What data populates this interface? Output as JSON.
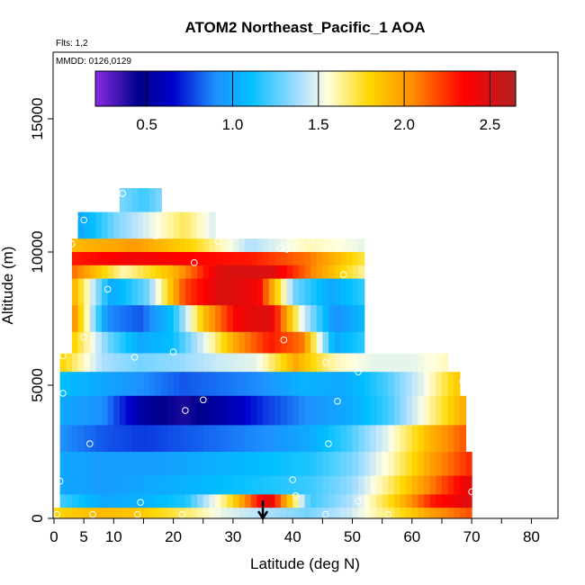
{
  "chart_data": {
    "type": "heatmap",
    "title": "ATOM2 Northeast_Pacific_1 AOA",
    "annotations": [
      "Flts: 1,2",
      "MMDD: 0126,0129"
    ],
    "xlabel": "Latitude (deg N)",
    "ylabel": "Altitude (m)",
    "xlim": [
      0,
      85
    ],
    "ylim": [
      0,
      17500
    ],
    "x_ticks": [
      0,
      5,
      10,
      20,
      30,
      40,
      50,
      60,
      70,
      80
    ],
    "y_ticks": [
      0,
      5000,
      10000,
      15000
    ],
    "colorbar": {
      "range": [
        0.2,
        2.65
      ],
      "ticks": [
        0.5,
        1.0,
        1.5,
        2.0,
        2.5
      ],
      "tick_labels": [
        "0.5",
        "1.0",
        "1.5",
        "2.0",
        "2.5"
      ],
      "colors": [
        "#8a2be2",
        "#00008b",
        "#0000cd",
        "#1e90ff",
        "#00bfff",
        "#b0e0ff",
        "#ffffe0",
        "#ffd700",
        "#ff8c00",
        "#ff0000",
        "#b22222"
      ],
      "stops": [
        0.2,
        0.45,
        0.65,
        0.9,
        1.1,
        1.4,
        1.55,
        1.8,
        2.05,
        2.35,
        2.65
      ]
    },
    "altitude_bands": [
      {
        "z0": 11500,
        "z1": 12400,
        "x0": 11,
        "x1": 18,
        "values": [
          1.3,
          1.2,
          1.35
        ]
      },
      {
        "z0": 10500,
        "z1": 11500,
        "x0": 4,
        "x1": 27,
        "values": [
          1.0,
          1.3,
          1.5,
          1.7,
          1.45
        ]
      },
      {
        "z0": 10000,
        "z1": 10500,
        "x0": 3,
        "x1": 52,
        "values": [
          1.9,
          2.0,
          1.8,
          1.4,
          1.6,
          1.5
        ]
      },
      {
        "z0": 9500,
        "z1": 10000,
        "x0": 3,
        "x1": 52,
        "values": [
          2.3,
          2.4,
          2.35,
          2.3,
          2.1,
          1.7
        ]
      },
      {
        "z0": 9000,
        "z1": 9500,
        "x0": 3,
        "x1": 52,
        "values": [
          2.1,
          1.6,
          1.9,
          2.5,
          2.5,
          2.0,
          1.6
        ]
      },
      {
        "z0": 8000,
        "z1": 9000,
        "x0": 3,
        "x1": 52,
        "values": [
          1.9,
          1.0,
          1.3,
          2.2,
          2.5,
          2.4,
          1.3,
          1.0,
          1.2
        ]
      },
      {
        "z0": 7000,
        "z1": 8000,
        "x0": 3,
        "x1": 52,
        "values": [
          2.0,
          0.9,
          0.8,
          1.1,
          1.9,
          2.4,
          2.5,
          1.5,
          0.9,
          1.1
        ]
      },
      {
        "z0": 6200,
        "z1": 7000,
        "x0": 3,
        "x1": 52,
        "values": [
          1.8,
          1.3,
          1.0,
          1.1,
          1.5,
          2.0,
          2.3,
          2.1,
          1.0,
          1.2
        ]
      },
      {
        "z0": 5500,
        "z1": 6200,
        "x0": 1,
        "x1": 66,
        "values": [
          1.8,
          1.4,
          1.3,
          1.35,
          1.45,
          1.5,
          1.95,
          1.6,
          1.5,
          1.5,
          1.6
        ]
      },
      {
        "z0": 4600,
        "z1": 5500,
        "x0": 1,
        "x1": 68,
        "values": [
          1.1,
          1.0,
          0.9,
          0.8,
          0.85,
          0.9,
          1.05,
          1.0,
          1.2,
          1.5,
          1.9
        ]
      },
      {
        "z0": 3500,
        "z1": 4600,
        "x0": 1,
        "x1": 69,
        "values": [
          1.0,
          0.9,
          0.5,
          0.4,
          0.55,
          0.75,
          0.9,
          1.0,
          1.2,
          1.6,
          2.0
        ]
      },
      {
        "z0": 2500,
        "z1": 3500,
        "x0": 1,
        "x1": 69,
        "values": [
          0.9,
          0.8,
          0.75,
          0.8,
          0.85,
          0.9,
          1.0,
          1.2,
          1.5,
          1.9,
          2.2
        ]
      },
      {
        "z0": 1600,
        "z1": 2500,
        "x0": 1,
        "x1": 70,
        "values": [
          1.0,
          0.95,
          0.95,
          1.0,
          1.05,
          1.1,
          1.15,
          1.3,
          1.6,
          2.0,
          2.3
        ]
      },
      {
        "z0": 900,
        "z1": 1600,
        "x0": 1,
        "x1": 70,
        "values": [
          1.0,
          0.95,
          1.0,
          1.05,
          1.1,
          1.15,
          1.2,
          1.35,
          1.7,
          2.1,
          2.5
        ]
      },
      {
        "z0": 400,
        "z1": 900,
        "x0": 1,
        "x1": 70,
        "values": [
          1.2,
          1.0,
          1.05,
          1.15,
          1.7,
          2.5,
          1.2,
          1.4,
          1.8,
          2.3,
          2.5
        ]
      },
      {
        "z0": 0,
        "z1": 400,
        "x0": 0,
        "x1": 70,
        "values": [
          1.8,
          1.9,
          1.85,
          1.7,
          1.5,
          1.4,
          1.3,
          1.45,
          1.7,
          2.0,
          2.2
        ]
      }
    ],
    "sample_points": [
      [
        11.5,
        12200
      ],
      [
        3.5,
        11300
      ],
      [
        5,
        11200
      ],
      [
        17,
        10600
      ],
      [
        27.5,
        10400
      ],
      [
        38,
        10150
      ],
      [
        39,
        10100
      ],
      [
        43,
        10450
      ],
      [
        3,
        10300
      ],
      [
        23.5,
        9600
      ],
      [
        48.5,
        9150
      ],
      [
        9,
        8600
      ],
      [
        53,
        7300
      ],
      [
        53.5,
        7200
      ],
      [
        5,
        6800
      ],
      [
        38.5,
        6700
      ],
      [
        20,
        6250
      ],
      [
        13.5,
        6050
      ],
      [
        1.5,
        6100
      ],
      [
        45.5,
        5850
      ],
      [
        51,
        5500
      ],
      [
        68.5,
        5150
      ],
      [
        1.5,
        4700
      ],
      [
        25,
        4450
      ],
      [
        47.5,
        4400
      ],
      [
        22,
        4050
      ],
      [
        6,
        2800
      ],
      [
        46,
        2800
      ],
      [
        40,
        1450
      ],
      [
        1,
        1400
      ],
      [
        40.5,
        850
      ],
      [
        70,
        1000
      ],
      [
        14.5,
        600
      ],
      [
        51,
        650
      ],
      [
        0.5,
        150
      ],
      [
        6.5,
        150
      ],
      [
        14,
        150
      ],
      [
        21.5,
        150
      ],
      [
        45.5,
        150
      ],
      [
        56,
        150
      ]
    ],
    "marker_arrow_latitude": 35,
    "grid": false,
    "legend": "top"
  }
}
